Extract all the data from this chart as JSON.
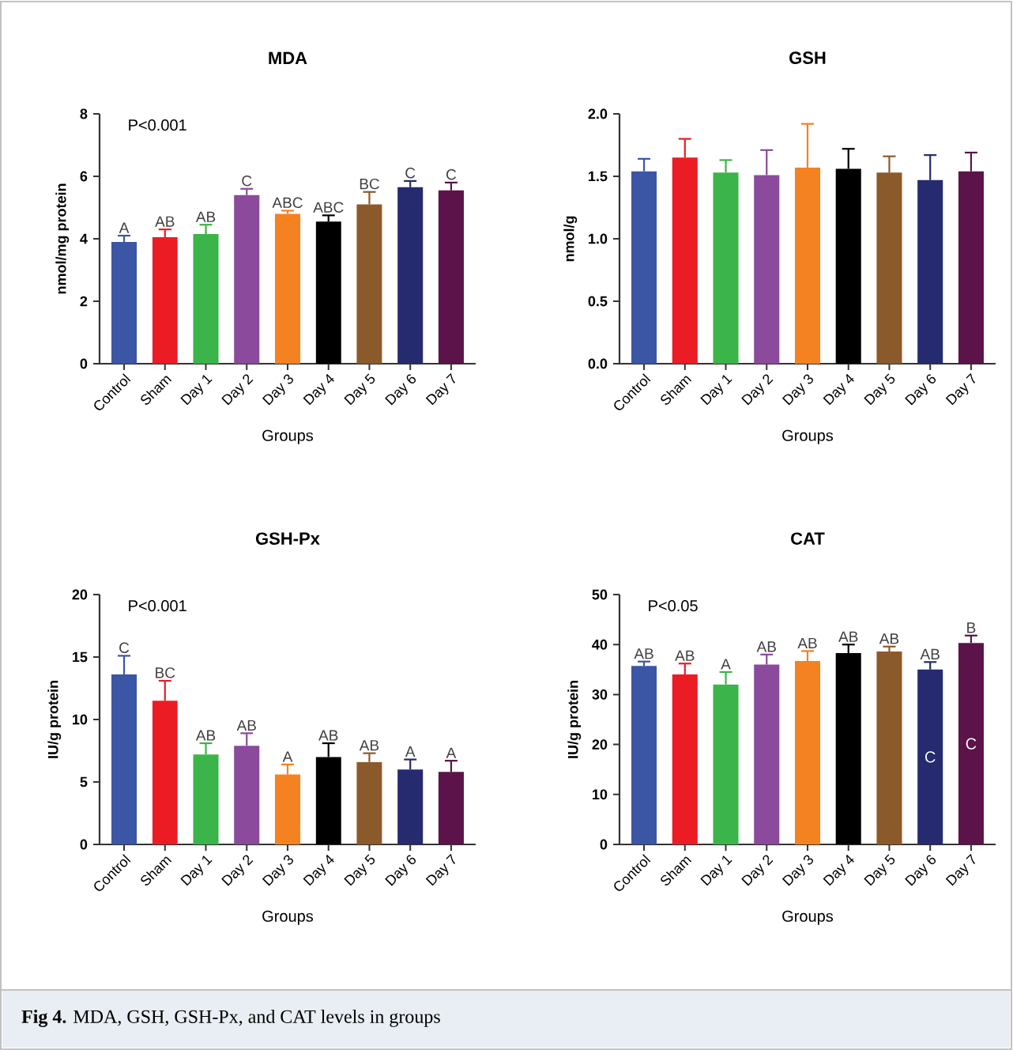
{
  "chart_data": [
    {
      "type": "bar",
      "title": "MDA",
      "xlabel": "Groups",
      "ylabel": "nmol/mg protein",
      "categories": [
        "Control",
        "Sham",
        "Day 1",
        "Day 2",
        "Day 3",
        "Day 4",
        "Day 5",
        "Day 6",
        "Day 7"
      ],
      "values": [
        3.9,
        4.05,
        4.15,
        5.4,
        4.8,
        4.55,
        5.1,
        5.65,
        5.55
      ],
      "errors": [
        [
          3.9,
          4.1
        ],
        [
          4.05,
          4.3
        ],
        [
          4.15,
          4.45
        ],
        [
          5.4,
          5.6
        ],
        [
          4.8,
          4.9
        ],
        [
          4.55,
          4.75
        ],
        [
          5.1,
          5.5
        ],
        [
          5.65,
          5.85
        ],
        [
          5.55,
          5.8
        ]
      ],
      "colors": [
        "#3a56a5",
        "#ec1c24",
        "#3bb44a",
        "#8b4a9c",
        "#f58220",
        "#000000",
        "#8b5a2b",
        "#262a6e",
        "#5c1349"
      ],
      "value_labels": [
        "A",
        "AB",
        "AB",
        "C",
        "ABC",
        "ABC",
        "BC",
        "C",
        "C"
      ],
      "annotations": [
        "P<0.001"
      ],
      "ylim": [
        0,
        8
      ],
      "yticks": [
        0,
        2,
        4,
        6,
        8
      ]
    },
    {
      "type": "bar",
      "title": "GSH",
      "xlabel": "Groups",
      "ylabel": "nmol/g",
      "categories": [
        "Control",
        "Sham",
        "Day 1",
        "Day 2",
        "Day 3",
        "Day 4",
        "Day 5",
        "Day 6",
        "Day 7"
      ],
      "values": [
        1.54,
        1.65,
        1.53,
        1.51,
        1.57,
        1.56,
        1.53,
        1.47,
        1.54
      ],
      "errors": [
        [
          1.54,
          1.64
        ],
        [
          1.65,
          1.8
        ],
        [
          1.53,
          1.63
        ],
        [
          1.51,
          1.71
        ],
        [
          1.57,
          1.92
        ],
        [
          1.56,
          1.72
        ],
        [
          1.53,
          1.66
        ],
        [
          1.47,
          1.67
        ],
        [
          1.54,
          1.69
        ]
      ],
      "colors": [
        "#3a56a5",
        "#ec1c24",
        "#3bb44a",
        "#8b4a9c",
        "#f58220",
        "#000000",
        "#8b5a2b",
        "#262a6e",
        "#5c1349"
      ],
      "ylim": [
        0,
        2
      ],
      "yticks": [
        {
          "value": 0,
          "label": "0.0"
        },
        0.5,
        {
          "value": 1,
          "label": "1.0"
        },
        1.5,
        {
          "value": 2,
          "label": "2.0"
        }
      ]
    },
    {
      "type": "bar",
      "title": "GSH-Px",
      "xlabel": "Groups",
      "ylabel": "IU/g protein",
      "categories": [
        "Control",
        "Sham",
        "Day 1",
        "Day 2",
        "Day 3",
        "Day 4",
        "Day 5",
        "Day 6",
        "Day 7"
      ],
      "values": [
        13.6,
        11.5,
        7.2,
        7.9,
        5.6,
        7.0,
        6.6,
        6.0,
        5.8
      ],
      "errors": [
        [
          13.6,
          15.1
        ],
        [
          11.5,
          13.1
        ],
        [
          7.2,
          8.1
        ],
        [
          7.9,
          8.9
        ],
        [
          5.6,
          6.4
        ],
        [
          7.0,
          8.1
        ],
        [
          6.6,
          7.3
        ],
        [
          6.0,
          6.8
        ],
        [
          5.8,
          6.7
        ]
      ],
      "colors": [
        "#3a56a5",
        "#ec1c24",
        "#3bb44a",
        "#8b4a9c",
        "#f58220",
        "#000000",
        "#8b5a2b",
        "#262a6e",
        "#5c1349"
      ],
      "value_labels": [
        "C",
        "BC",
        "AB",
        "AB",
        "A",
        "AB",
        "AB",
        "A",
        "A"
      ],
      "annotations": [
        "P<0.001"
      ],
      "ylim": [
        0,
        20
      ],
      "yticks": [
        0,
        5,
        10,
        15,
        20
      ]
    },
    {
      "type": "bar",
      "title": "CAT",
      "xlabel": "Groups",
      "ylabel": "IU/g protein",
      "categories": [
        "Control",
        "Sham",
        "Day 1",
        "Day 2",
        "Day 3",
        "Day 4",
        "Day 5",
        "Day 6",
        "Day 7"
      ],
      "values": [
        35.7,
        34.0,
        32.0,
        36.0,
        36.7,
        38.3,
        38.6,
        35.0,
        40.3
      ],
      "errors": [
        [
          35.7,
          36.6
        ],
        [
          34.0,
          36.2
        ],
        [
          32.0,
          34.5
        ],
        [
          36.0,
          38.0
        ],
        [
          36.7,
          38.7
        ],
        [
          38.3,
          40.0
        ],
        [
          38.6,
          39.6
        ],
        [
          35.0,
          36.5
        ],
        [
          40.3,
          41.8
        ]
      ],
      "colors": [
        "#3a56a5",
        "#ec1c24",
        "#3bb44a",
        "#8b4a9c",
        "#f58220",
        "#000000",
        "#8b5a2b",
        "#262a6e",
        "#5c1349"
      ],
      "value_labels": [
        "AB",
        "AB",
        "A",
        "AB",
        "AB",
        "AB",
        "AB",
        "AB",
        "B"
      ],
      "annotations": [
        "P<0.05",
        "C",
        "C"
      ],
      "ylim": [
        0,
        50
      ],
      "yticks": [
        0,
        10,
        20,
        30,
        40,
        50
      ]
    },
    {
      "type": "other",
      "annotations": [
        "**Fig 4.** MDA, GSH, GSH-Px, and CAT levels in groups"
      ]
    }
  ]
}
